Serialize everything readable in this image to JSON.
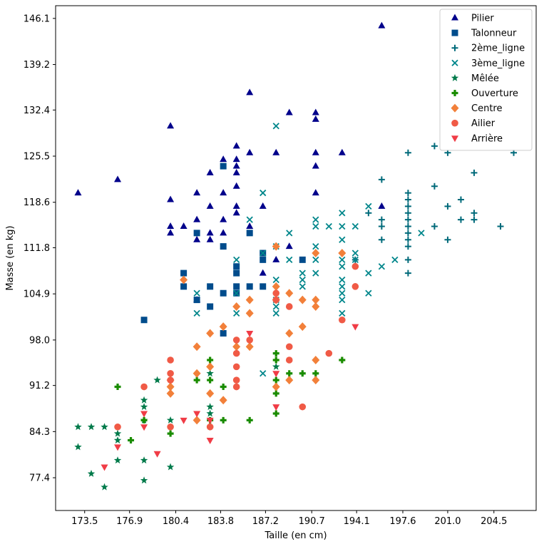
{
  "chart_data": {
    "type": "scatter",
    "xlabel": "Taille (en cm)",
    "ylabel": "Masse (en kg)",
    "xlim": [
      171.3,
      207.7
    ],
    "ylim": [
      72.5,
      148.0
    ],
    "xticks": [
      173.5,
      176.9,
      180.4,
      183.8,
      187.2,
      190.7,
      194.1,
      197.6,
      201.0,
      204.5
    ],
    "yticks": [
      77.4,
      84.3,
      91.2,
      98.0,
      104.9,
      111.8,
      118.6,
      125.5,
      132.4,
      139.2,
      146.1
    ],
    "legend_position": "top-right",
    "grid": false,
    "series": [
      {
        "name": "Pilier",
        "marker": "triangle-up",
        "color": "#00008b",
        "points": [
          [
            173,
            120
          ],
          [
            176,
            122
          ],
          [
            180,
            130
          ],
          [
            180,
            119
          ],
          [
            180,
            115
          ],
          [
            180,
            114
          ],
          [
            181,
            115
          ],
          [
            182,
            116
          ],
          [
            182,
            113
          ],
          [
            182,
            120
          ],
          [
            183,
            123
          ],
          [
            183,
            118
          ],
          [
            183,
            114
          ],
          [
            183,
            113
          ],
          [
            184,
            125
          ],
          [
            184,
            120
          ],
          [
            184,
            116
          ],
          [
            184,
            114
          ],
          [
            185,
            127
          ],
          [
            185,
            125
          ],
          [
            185,
            123
          ],
          [
            185,
            124
          ],
          [
            185,
            121
          ],
          [
            185,
            117
          ],
          [
            185,
            118
          ],
          [
            186,
            126
          ],
          [
            186,
            115
          ],
          [
            186,
            135
          ],
          [
            187,
            118
          ],
          [
            187,
            108
          ],
          [
            188,
            126
          ],
          [
            188,
            110
          ],
          [
            189,
            132
          ],
          [
            189,
            112
          ],
          [
            191,
            132
          ],
          [
            191,
            131
          ],
          [
            191,
            126
          ],
          [
            191,
            124
          ],
          [
            191,
            120
          ],
          [
            193,
            126
          ],
          [
            196,
            145
          ],
          [
            196,
            118
          ],
          [
            182,
            104
          ]
        ]
      },
      {
        "name": "Talonneur",
        "marker": "square",
        "color": "#004c8c",
        "points": [
          [
            178,
            101
          ],
          [
            181,
            108
          ],
          [
            181,
            106
          ],
          [
            182,
            114
          ],
          [
            182,
            104
          ],
          [
            183,
            106
          ],
          [
            183,
            103
          ],
          [
            184,
            124
          ],
          [
            184,
            112
          ],
          [
            184,
            105
          ],
          [
            184,
            99
          ],
          [
            185,
            109
          ],
          [
            185,
            108
          ],
          [
            185,
            106
          ],
          [
            185,
            105
          ],
          [
            186,
            114
          ],
          [
            186,
            106
          ],
          [
            187,
            111
          ],
          [
            187,
            110
          ],
          [
            187,
            106
          ],
          [
            190,
            110
          ]
        ]
      },
      {
        "name": "2ème_ligne",
        "marker": "plus",
        "color": "#006a7a",
        "points": [
          [
            194,
            110
          ],
          [
            195,
            117
          ],
          [
            196,
            122
          ],
          [
            196,
            116
          ],
          [
            196,
            115
          ],
          [
            196,
            113
          ],
          [
            198,
            126
          ],
          [
            198,
            120
          ],
          [
            198,
            119
          ],
          [
            198,
            118
          ],
          [
            198,
            117
          ],
          [
            198,
            116
          ],
          [
            198,
            115
          ],
          [
            198,
            114
          ],
          [
            198,
            113
          ],
          [
            198,
            112
          ],
          [
            198,
            110
          ],
          [
            198,
            108
          ],
          [
            200,
            127
          ],
          [
            200,
            121
          ],
          [
            200,
            115
          ],
          [
            201,
            126
          ],
          [
            201,
            118
          ],
          [
            201,
            113
          ],
          [
            202,
            119
          ],
          [
            202,
            116
          ],
          [
            203,
            123
          ],
          [
            203,
            117
          ],
          [
            203,
            116
          ],
          [
            205,
            115
          ],
          [
            206,
            126
          ]
        ]
      },
      {
        "name": "3ème_ligne",
        "marker": "x",
        "color": "#00868b",
        "points": [
          [
            182,
            105
          ],
          [
            182,
            102
          ],
          [
            185,
            110
          ],
          [
            185,
            105
          ],
          [
            185,
            102
          ],
          [
            186,
            116
          ],
          [
            187,
            120
          ],
          [
            187,
            111
          ],
          [
            187,
            93
          ],
          [
            188,
            130
          ],
          [
            188,
            112
          ],
          [
            188,
            107
          ],
          [
            188,
            104
          ],
          [
            188,
            103
          ],
          [
            188,
            102
          ],
          [
            189,
            114
          ],
          [
            189,
            110
          ],
          [
            190,
            108
          ],
          [
            190,
            107
          ],
          [
            190,
            106
          ],
          [
            191,
            116
          ],
          [
            191,
            115
          ],
          [
            191,
            112
          ],
          [
            191,
            110
          ],
          [
            191,
            108
          ],
          [
            192,
            115
          ],
          [
            193,
            117
          ],
          [
            193,
            115
          ],
          [
            193,
            113
          ],
          [
            193,
            110
          ],
          [
            193,
            109
          ],
          [
            193,
            107
          ],
          [
            193,
            106
          ],
          [
            193,
            105
          ],
          [
            193,
            104
          ],
          [
            193,
            102
          ],
          [
            194,
            115
          ],
          [
            194,
            111
          ],
          [
            194,
            110
          ],
          [
            195,
            118
          ],
          [
            195,
            108
          ],
          [
            195,
            105
          ],
          [
            196,
            109
          ],
          [
            197,
            110
          ],
          [
            199,
            114
          ]
        ]
      },
      {
        "name": "Mêlée",
        "marker": "star",
        "color": "#007a4a",
        "points": [
          [
            173,
            85
          ],
          [
            173,
            82
          ],
          [
            174,
            85
          ],
          [
            174,
            78
          ],
          [
            175,
            85
          ],
          [
            175,
            76
          ],
          [
            176,
            84
          ],
          [
            176,
            83
          ],
          [
            176,
            80
          ],
          [
            178,
            89
          ],
          [
            178,
            88
          ],
          [
            178,
            86
          ],
          [
            178,
            80
          ],
          [
            178,
            77
          ],
          [
            179,
            92
          ],
          [
            180,
            86
          ],
          [
            180,
            79
          ],
          [
            183,
            93
          ],
          [
            183,
            88
          ],
          [
            183,
            87
          ],
          [
            188,
            94
          ]
        ]
      },
      {
        "name": "Ouverture",
        "marker": "plus-bold",
        "color": "#1a8c00",
        "points": [
          [
            176,
            91
          ],
          [
            177,
            83
          ],
          [
            178,
            86
          ],
          [
            180,
            84
          ],
          [
            182,
            92
          ],
          [
            183,
            95
          ],
          [
            183,
            92
          ],
          [
            183,
            86
          ],
          [
            183,
            85
          ],
          [
            184,
            91
          ],
          [
            184,
            86
          ],
          [
            186,
            86
          ],
          [
            188,
            96
          ],
          [
            188,
            95
          ],
          [
            188,
            92
          ],
          [
            188,
            90
          ],
          [
            188,
            87
          ],
          [
            189,
            93
          ],
          [
            190,
            93
          ],
          [
            191,
            93
          ],
          [
            193,
            95
          ]
        ]
      },
      {
        "name": "Centre",
        "marker": "diamond",
        "color": "#f2803a",
        "points": [
          [
            180,
            92
          ],
          [
            180,
            91
          ],
          [
            180,
            90
          ],
          [
            181,
            107
          ],
          [
            182,
            97
          ],
          [
            182,
            93
          ],
          [
            182,
            86
          ],
          [
            183,
            99
          ],
          [
            183,
            94
          ],
          [
            183,
            90
          ],
          [
            184,
            100
          ],
          [
            184,
            89
          ],
          [
            185,
            103
          ],
          [
            185,
            97
          ],
          [
            186,
            104
          ],
          [
            186,
            102
          ],
          [
            186,
            97
          ],
          [
            188,
            112
          ],
          [
            188,
            106
          ],
          [
            188,
            104
          ],
          [
            188,
            91
          ],
          [
            189,
            105
          ],
          [
            189,
            99
          ],
          [
            189,
            92
          ],
          [
            190,
            104
          ],
          [
            190,
            100
          ],
          [
            191,
            111
          ],
          [
            191,
            104
          ],
          [
            191,
            103
          ],
          [
            191,
            95
          ],
          [
            191,
            92
          ],
          [
            193,
            111
          ]
        ]
      },
      {
        "name": "Ailier",
        "marker": "circle",
        "color": "#f05a46",
        "points": [
          [
            176,
            85
          ],
          [
            178,
            91
          ],
          [
            180,
            95
          ],
          [
            180,
            93
          ],
          [
            180,
            92
          ],
          [
            180,
            85
          ],
          [
            183,
            85
          ],
          [
            185,
            98
          ],
          [
            185,
            96
          ],
          [
            185,
            94
          ],
          [
            185,
            92
          ],
          [
            185,
            91
          ],
          [
            186,
            98
          ],
          [
            188,
            105
          ],
          [
            188,
            104
          ],
          [
            189,
            103
          ],
          [
            189,
            97
          ],
          [
            189,
            95
          ],
          [
            190,
            88
          ],
          [
            192,
            96
          ],
          [
            193,
            101
          ],
          [
            194,
            109
          ],
          [
            194,
            106
          ]
        ]
      },
      {
        "name": "Arrière",
        "marker": "triangle-down",
        "color": "#f03c46",
        "points": [
          [
            175,
            79
          ],
          [
            176,
            82
          ],
          [
            178,
            87
          ],
          [
            178,
            85
          ],
          [
            179,
            81
          ],
          [
            181,
            86
          ],
          [
            182,
            87
          ],
          [
            183,
            86
          ],
          [
            183,
            83
          ],
          [
            186,
            99
          ],
          [
            188,
            93
          ],
          [
            188,
            88
          ],
          [
            194,
            100
          ]
        ]
      }
    ]
  }
}
